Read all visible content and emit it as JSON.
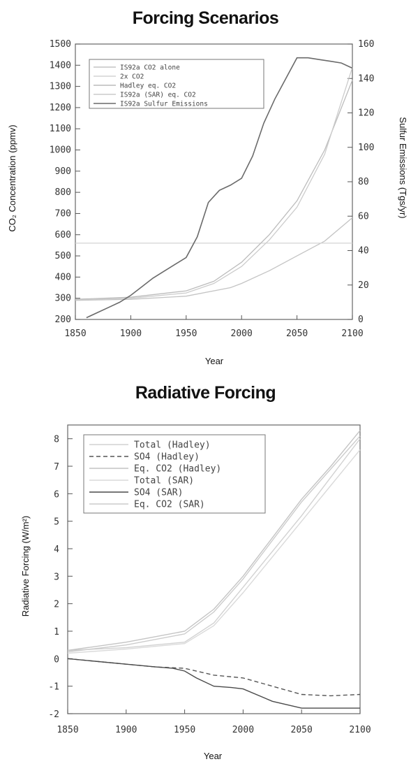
{
  "chart_data": [
    {
      "type": "line",
      "title": "Forcing Scenarios",
      "xlabel": "Year",
      "ylabel": "CO₂ Concentration (ppmv)",
      "ylabel_right": "Sulfur Emissions (Tgs/yr)",
      "xlim": [
        1850,
        2100
      ],
      "ylim": [
        200,
        1500
      ],
      "ylim_right": [
        0,
        160
      ],
      "x_ticks": [
        1850,
        1900,
        1950,
        2000,
        2050,
        2100
      ],
      "y_ticks": [
        200,
        300,
        400,
        500,
        600,
        700,
        800,
        900,
        1000,
        1100,
        1200,
        1300,
        1400,
        1500
      ],
      "y_ticks_right": [
        0,
        20,
        40,
        60,
        80,
        100,
        120,
        140,
        160
      ],
      "legend_position": "top-left",
      "series": [
        {
          "name": "IS92a CO2 alone",
          "axis": "left",
          "color": "#c4c4c4",
          "dash": "",
          "x": [
            1850,
            1900,
            1950,
            1990,
            2000,
            2025,
            2050,
            2075,
            2100
          ],
          "y": [
            290,
            295,
            310,
            350,
            370,
            430,
            500,
            570,
            680
          ]
        },
        {
          "name": "2x CO2",
          "axis": "left",
          "color": "#d4d4d4",
          "dash": "",
          "x": [
            1850,
            2100
          ],
          "y": [
            560,
            560
          ]
        },
        {
          "name": "Hadley eq. CO2",
          "axis": "left",
          "color": "#bcbcbc",
          "dash": "",
          "x": [
            1850,
            1900,
            1950,
            1975,
            2000,
            2025,
            2050,
            2075,
            2100
          ],
          "y": [
            295,
            305,
            335,
            380,
            470,
            600,
            760,
            1000,
            1330
          ]
        },
        {
          "name": "IS92a (SAR) eq. CO2",
          "axis": "left",
          "color": "#cccccc",
          "dash": "",
          "x": [
            1850,
            1900,
            1950,
            1975,
            2000,
            2025,
            2050,
            2075,
            2100
          ],
          "y": [
            292,
            300,
            325,
            370,
            450,
            575,
            730,
            980,
            1390
          ]
        },
        {
          "name": "IS92a Sulfur Emissions",
          "axis": "right",
          "color": "#6a6a6a",
          "dash": "",
          "x": [
            1860,
            1870,
            1880,
            1890,
            1900,
            1910,
            1920,
            1930,
            1940,
            1950,
            1960,
            1970,
            1980,
            1990,
            2000,
            2010,
            2020,
            2030,
            2040,
            2050,
            2060,
            2070,
            2080,
            2090,
            2100
          ],
          "y": [
            1,
            4,
            7,
            10,
            14,
            19,
            24,
            28,
            32,
            36,
            48,
            68,
            75,
            78,
            82,
            95,
            114,
            128,
            140,
            152,
            152,
            151,
            150,
            149,
            146
          ]
        }
      ]
    },
    {
      "type": "line",
      "title": "Radiative Forcing",
      "xlabel": "Year",
      "ylabel": "Radiative Forcing (W/m²)",
      "xlim": [
        1850,
        2100
      ],
      "ylim": [
        -2,
        8.5
      ],
      "x_ticks": [
        1850,
        1900,
        1950,
        2000,
        2050,
        2100
      ],
      "y_ticks": [
        -2,
        -1,
        0,
        1,
        2,
        3,
        4,
        5,
        6,
        7,
        8
      ],
      "legend_position": "top-left",
      "series": [
        {
          "name": "Total (Hadley)",
          "color": "#d2d2d2",
          "dash": "",
          "x": [
            1850,
            1900,
            1950,
            1975,
            2000,
            2025,
            2050,
            2075,
            2100
          ],
          "y": [
            0.3,
            0.4,
            0.6,
            1.3,
            2.6,
            3.9,
            5.2,
            6.6,
            8.0
          ]
        },
        {
          "name": "SO4 (Hadley)",
          "color": "#555555",
          "dash": "6,4",
          "x": [
            1850,
            1900,
            1925,
            1950,
            1975,
            2000,
            2025,
            2050,
            2075,
            2100
          ],
          "y": [
            0,
            -0.2,
            -0.3,
            -0.35,
            -0.6,
            -0.7,
            -1.0,
            -1.3,
            -1.35,
            -1.3
          ]
        },
        {
          "name": "Eq. CO2 (Hadley)",
          "color": "#c4c4c4",
          "dash": "",
          "x": [
            1850,
            1900,
            1950,
            1975,
            2000,
            2025,
            2050,
            2075,
            2100
          ],
          "y": [
            0.3,
            0.6,
            1.0,
            1.8,
            3.0,
            4.4,
            5.8,
            7.0,
            8.3
          ]
        },
        {
          "name": "Total (SAR)",
          "color": "#dadada",
          "dash": "",
          "x": [
            1850,
            1900,
            1950,
            1975,
            2000,
            2025,
            2050,
            2075,
            2100
          ],
          "y": [
            0.2,
            0.35,
            0.55,
            1.2,
            2.4,
            3.7,
            5.0,
            6.3,
            7.6
          ]
        },
        {
          "name": "SO4 (SAR)",
          "color": "#4a4a4a",
          "dash": "",
          "x": [
            1850,
            1900,
            1925,
            1940,
            1950,
            1960,
            1975,
            1990,
            2000,
            2025,
            2050,
            2075,
            2100
          ],
          "y": [
            0,
            -0.2,
            -0.3,
            -0.35,
            -0.45,
            -0.7,
            -1.0,
            -1.05,
            -1.1,
            -1.55,
            -1.8,
            -1.8,
            -1.8
          ]
        },
        {
          "name": "Eq. CO2 (SAR)",
          "color": "#cccccc",
          "dash": "",
          "x": [
            1850,
            1900,
            1950,
            1975,
            2000,
            2025,
            2050,
            2075,
            2100
          ],
          "y": [
            0.25,
            0.5,
            0.9,
            1.7,
            2.9,
            4.3,
            5.7,
            6.9,
            8.1
          ]
        }
      ]
    }
  ]
}
